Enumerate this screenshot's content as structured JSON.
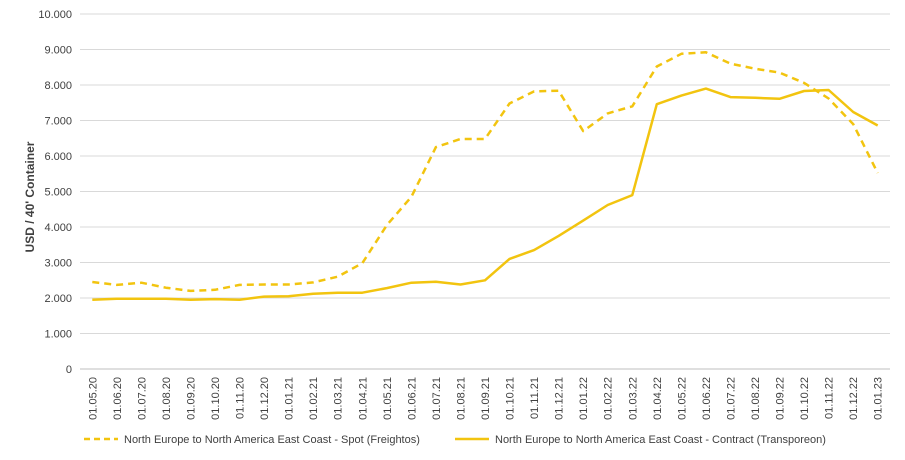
{
  "chart_data": {
    "type": "line",
    "title": "",
    "xlabel": "",
    "ylabel": "USD / 40' Container",
    "ylim": [
      0,
      10000
    ],
    "y_ticks": [
      "0",
      "1.000",
      "2.000",
      "3.000",
      "4.000",
      "5.000",
      "6.000",
      "7.000",
      "8.000",
      "9.000",
      "10.000"
    ],
    "grid": "horizontal",
    "legend_position": "bottom",
    "categories": [
      "01.05.20",
      "01.06.20",
      "01.07.20",
      "01.08.20",
      "01.09.20",
      "01.10.20",
      "01.11.20",
      "01.12.20",
      "01.01.21",
      "01.02.21",
      "01.03.21",
      "01.04.21",
      "01.05.21",
      "01.06.21",
      "01.07.21",
      "01.08.21",
      "01.09.21",
      "01.10.21",
      "01.11.21",
      "01.12.21",
      "01.01.22",
      "01.02.22",
      "01.03.22",
      "01.04.22",
      "01.05.22",
      "01.06.22",
      "01.07.22",
      "01.08.22",
      "01.09.22",
      "01.10.22",
      "01.11.22",
      "01.12.22",
      "01.01.23"
    ],
    "series": [
      {
        "name": "North Europe to North America East Coast - Spot (Freightos)",
        "color": "#F2C40F",
        "dash": "dashed",
        "values": [
          2450,
          2370,
          2430,
          2290,
          2200,
          2230,
          2370,
          2380,
          2380,
          2440,
          2600,
          2980,
          4050,
          4850,
          6250,
          6480,
          6480,
          7480,
          7820,
          7840,
          6700,
          7200,
          7400,
          8520,
          8880,
          8920,
          8600,
          8460,
          8350,
          8060,
          7620,
          6900,
          5520
        ]
      },
      {
        "name": "North Europe to North America East Coast - Contract (Transporeon)",
        "color": "#F2C40F",
        "dash": "solid",
        "values": [
          1950,
          1980,
          1980,
          1980,
          1950,
          1970,
          1950,
          2040,
          2050,
          2120,
          2150,
          2150,
          2280,
          2430,
          2460,
          2380,
          2500,
          3100,
          3350,
          3750,
          4180,
          4620,
          4900,
          7460,
          7700,
          7900,
          7660,
          7640,
          7610,
          7830,
          7860,
          7240,
          6860
        ]
      }
    ]
  }
}
